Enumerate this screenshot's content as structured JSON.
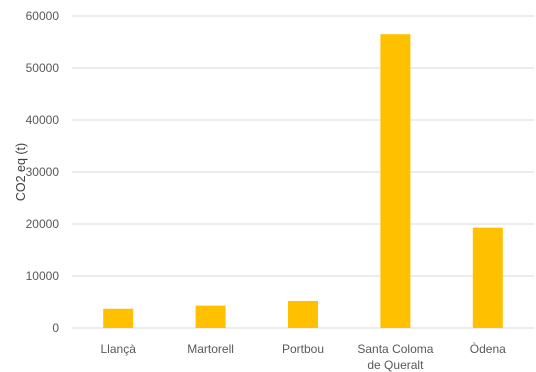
{
  "chart_data": {
    "type": "bar",
    "title": "",
    "xlabel": "",
    "ylabel": "CO2 eq (t)",
    "categories": [
      [
        "Llançà"
      ],
      [
        "Martorell"
      ],
      [
        "Portbou"
      ],
      [
        "Santa Coloma",
        "de Queralt"
      ],
      [
        "Òdena"
      ]
    ],
    "values": [
      3700,
      4300,
      5200,
      56500,
      19300
    ],
    "ylim": [
      0,
      60000
    ],
    "yticks": [
      0,
      10000,
      20000,
      30000,
      40000,
      50000,
      60000
    ],
    "grid": "horizontal",
    "legend": "none",
    "bar_color": "#FFC000",
    "grid_color": "#D9D9D9"
  }
}
